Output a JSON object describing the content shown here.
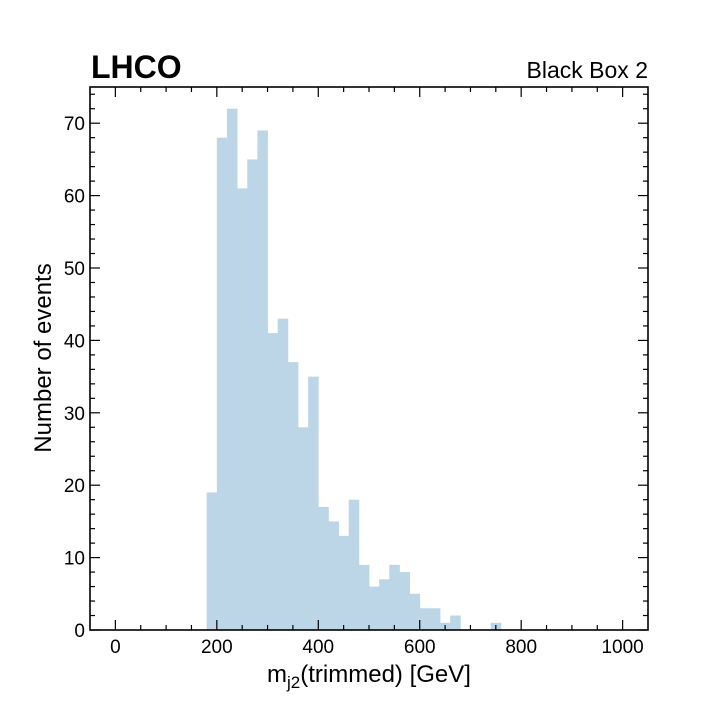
{
  "chart_data": {
    "type": "bar",
    "title_left": "LHCO",
    "title_right": "Black Box 2",
    "xlabel_main": "m",
    "xlabel_sub": "j2",
    "xlabel_rest": "(trimmed)  [GeV]",
    "ylabel": "Number of events",
    "xlim": [
      -50,
      1050
    ],
    "ylim": [
      0,
      75
    ],
    "xticks": [
      0,
      200,
      400,
      600,
      800,
      1000
    ],
    "yticks": [
      0,
      10,
      20,
      30,
      40,
      50,
      60,
      70
    ],
    "x_minor_step": 50,
    "y_minor_step": 2,
    "bin_width": 20,
    "bar_color": "#bcd5e7",
    "bins": [
      {
        "x": 180,
        "value": 19
      },
      {
        "x": 200,
        "value": 68
      },
      {
        "x": 220,
        "value": 72
      },
      {
        "x": 240,
        "value": 61
      },
      {
        "x": 260,
        "value": 65
      },
      {
        "x": 280,
        "value": 69
      },
      {
        "x": 300,
        "value": 41
      },
      {
        "x": 320,
        "value": 43
      },
      {
        "x": 340,
        "value": 37
      },
      {
        "x": 360,
        "value": 28
      },
      {
        "x": 380,
        "value": 35
      },
      {
        "x": 400,
        "value": 17
      },
      {
        "x": 420,
        "value": 15
      },
      {
        "x": 440,
        "value": 13
      },
      {
        "x": 460,
        "value": 18
      },
      {
        "x": 480,
        "value": 9
      },
      {
        "x": 500,
        "value": 6
      },
      {
        "x": 520,
        "value": 7
      },
      {
        "x": 540,
        "value": 9
      },
      {
        "x": 560,
        "value": 8
      },
      {
        "x": 580,
        "value": 5
      },
      {
        "x": 600,
        "value": 3
      },
      {
        "x": 620,
        "value": 3
      },
      {
        "x": 640,
        "value": 1
      },
      {
        "x": 660,
        "value": 2
      },
      {
        "x": 740,
        "value": 1
      }
    ]
  }
}
